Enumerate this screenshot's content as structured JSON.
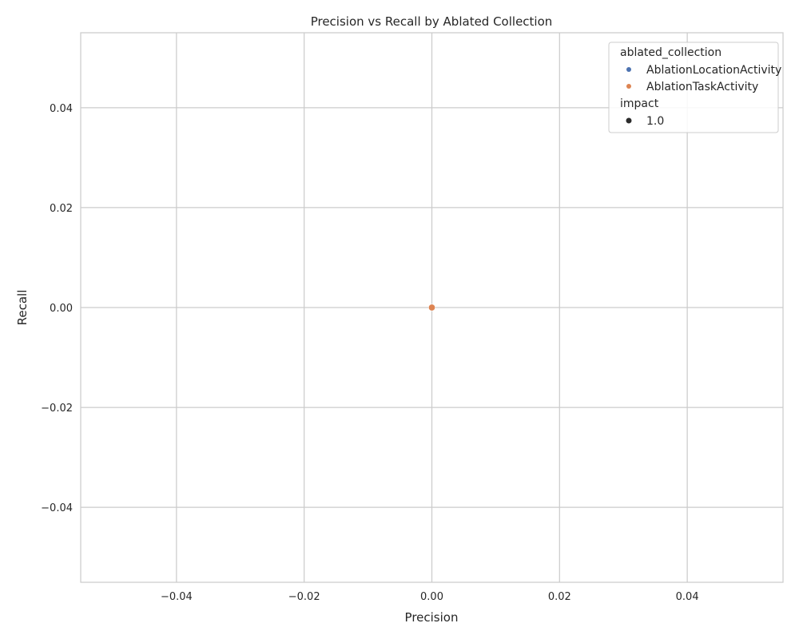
{
  "chart_data": {
    "type": "scatter",
    "title": "Precision vs Recall by Ablated Collection",
    "xlabel": "Precision",
    "ylabel": "Recall",
    "xlim": [
      -0.055,
      0.055
    ],
    "ylim": [
      -0.055,
      0.055
    ],
    "xticks": [
      -0.04,
      -0.02,
      0.0,
      0.02,
      0.04
    ],
    "yticks": [
      -0.04,
      -0.02,
      0.0,
      0.02,
      0.04
    ],
    "xtick_labels": [
      "−0.04",
      "−0.02",
      "0.00",
      "0.02",
      "0.04"
    ],
    "ytick_labels": [
      "−0.04",
      "−0.02",
      "0.00",
      "0.02",
      "0.04"
    ],
    "grid": true,
    "legend_placement": "top-right",
    "series": [
      {
        "name": "AblationLocationActivity",
        "color": "#4c72b0",
        "points": [
          {
            "x": 0.0,
            "y": 0.0,
            "impact": 1.0
          }
        ]
      },
      {
        "name": "AblationTaskActivity",
        "color": "#dd8452",
        "points": [
          {
            "x": 0.0,
            "y": 0.0,
            "impact": 1.0
          }
        ]
      }
    ],
    "legend": {
      "hue_title": "ablated_collection",
      "size_title": "impact",
      "size_entries": [
        {
          "label": "1.0",
          "color": "#2b2b2b"
        }
      ]
    }
  }
}
